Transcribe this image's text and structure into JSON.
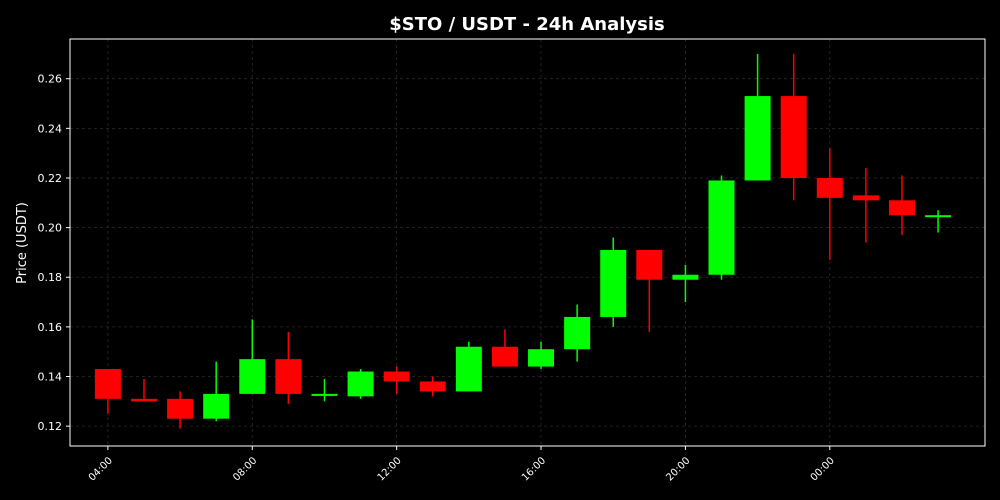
{
  "chart_data": {
    "type": "candlestick",
    "title": "$STO / USDT - 24h Analysis",
    "xlabel": "",
    "ylabel": "Price (USDT)",
    "ylim": [
      0.112,
      0.276
    ],
    "y_ticks": [
      0.12,
      0.14,
      0.16,
      0.18,
      0.2,
      0.22,
      0.24,
      0.26
    ],
    "y_tick_labels": [
      "0.12",
      "0.14",
      "0.16",
      "0.18",
      "0.20",
      "0.22",
      "0.24",
      "0.26"
    ],
    "x_ticks": [
      {
        "hour": 4,
        "label": "04:00"
      },
      {
        "hour": 8,
        "label": "08:00"
      },
      {
        "hour": 12,
        "label": "12:00"
      },
      {
        "hour": 16,
        "label": "16:00"
      },
      {
        "hour": 20,
        "label": "20:00"
      },
      {
        "hour": 24,
        "label": "00:00"
      }
    ],
    "xlim_hours": [
      2.95,
      28.3
    ],
    "grid": true,
    "colors": {
      "up": "#00ff00",
      "down": "#ff0000",
      "background": "#000000",
      "text": "#ffffff",
      "grid": "#2a2a2a"
    },
    "candles": [
      {
        "hour": 4,
        "open": 0.143,
        "high": 0.143,
        "low": 0.125,
        "close": 0.131
      },
      {
        "hour": 5,
        "open": 0.131,
        "high": 0.139,
        "low": 0.13,
        "close": 0.13
      },
      {
        "hour": 6,
        "open": 0.131,
        "high": 0.134,
        "low": 0.119,
        "close": 0.123
      },
      {
        "hour": 7,
        "open": 0.123,
        "high": 0.146,
        "low": 0.122,
        "close": 0.133
      },
      {
        "hour": 8,
        "open": 0.133,
        "high": 0.163,
        "low": 0.133,
        "close": 0.147
      },
      {
        "hour": 9,
        "open": 0.147,
        "high": 0.158,
        "low": 0.129,
        "close": 0.133
      },
      {
        "hour": 10,
        "open": 0.133,
        "high": 0.139,
        "low": 0.13,
        "close": 0.133
      },
      {
        "hour": 11,
        "open": 0.132,
        "high": 0.143,
        "low": 0.131,
        "close": 0.142
      },
      {
        "hour": 12,
        "open": 0.142,
        "high": 0.144,
        "low": 0.133,
        "close": 0.138
      },
      {
        "hour": 13,
        "open": 0.138,
        "high": 0.14,
        "low": 0.132,
        "close": 0.134
      },
      {
        "hour": 14,
        "open": 0.134,
        "high": 0.154,
        "low": 0.134,
        "close": 0.152
      },
      {
        "hour": 15,
        "open": 0.152,
        "high": 0.159,
        "low": 0.144,
        "close": 0.144
      },
      {
        "hour": 16,
        "open": 0.144,
        "high": 0.154,
        "low": 0.143,
        "close": 0.151
      },
      {
        "hour": 17,
        "open": 0.151,
        "high": 0.169,
        "low": 0.146,
        "close": 0.164
      },
      {
        "hour": 18,
        "open": 0.164,
        "high": 0.196,
        "low": 0.16,
        "close": 0.191
      },
      {
        "hour": 19,
        "open": 0.191,
        "high": 0.191,
        "low": 0.158,
        "close": 0.179
      },
      {
        "hour": 20,
        "open": 0.179,
        "high": 0.185,
        "low": 0.17,
        "close": 0.181
      },
      {
        "hour": 21,
        "open": 0.181,
        "high": 0.221,
        "low": 0.179,
        "close": 0.219
      },
      {
        "hour": 22,
        "open": 0.219,
        "high": 0.27,
        "low": 0.219,
        "close": 0.253
      },
      {
        "hour": 23,
        "open": 0.253,
        "high": 0.27,
        "low": 0.211,
        "close": 0.22
      },
      {
        "hour": 24,
        "open": 0.22,
        "high": 0.232,
        "low": 0.187,
        "close": 0.212
      },
      {
        "hour": 25,
        "open": 0.213,
        "high": 0.224,
        "low": 0.194,
        "close": 0.211
      },
      {
        "hour": 26,
        "open": 0.211,
        "high": 0.221,
        "low": 0.197,
        "close": 0.205
      },
      {
        "hour": 27,
        "open": 0.205,
        "high": 0.207,
        "low": 0.198,
        "close": 0.205
      }
    ]
  }
}
